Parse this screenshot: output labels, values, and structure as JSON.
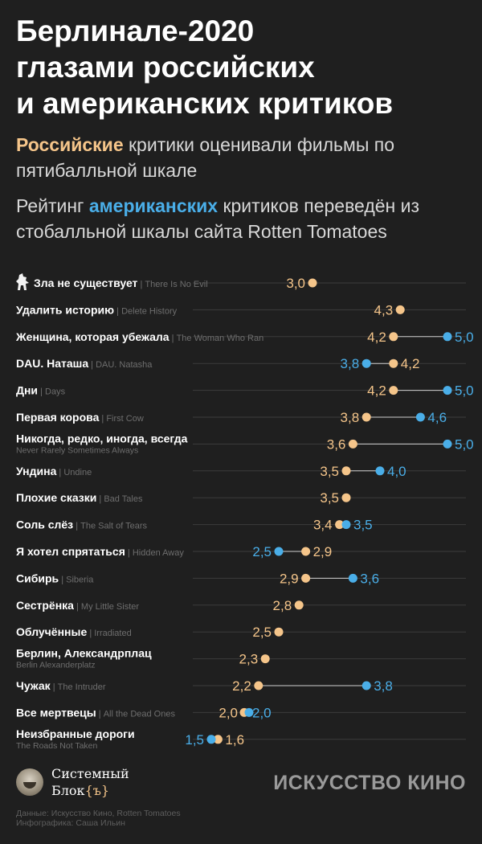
{
  "title_lines": [
    "Берлинале-2020",
    "глазами российских",
    "и американских критиков"
  ],
  "subtitle1": {
    "highlight": "Российские",
    "rest": " критики оценивали фильмы по пятибалльной шкале"
  },
  "subtitle2": {
    "pre": "Рейтинг ",
    "highlight": "американских",
    "rest": " критиков переведён из стобалльной шкалы сайта Rotten Tomatoes"
  },
  "colors": {
    "russian": "#f5c58a",
    "american": "#4aaee8",
    "background": "#1f1f1f",
    "gridline": "#3c3c3c",
    "english_label": "#6e6e6e"
  },
  "icons": {
    "bear": "berlinale-bear-icon"
  },
  "chart_data": {
    "type": "dot-plot",
    "x_range": [
      1,
      5
    ],
    "series": [
      {
        "name": "Российские критики",
        "color": "#f5c58a"
      },
      {
        "name": "Американские критики",
        "color": "#4aaee8"
      }
    ],
    "rows": [
      {
        "ru_title": "Зла не существует",
        "en_title": "There Is No Evil",
        "russian": 3.0,
        "american": null,
        "icon": true
      },
      {
        "ru_title": "Удалить историю",
        "en_title": "Delete History",
        "russian": 4.3,
        "american": null
      },
      {
        "ru_title": "Женщина, которая убежала",
        "en_title": "The Woman Who Ran",
        "russian": 4.2,
        "american": 5.0
      },
      {
        "ru_title": "DAU. Наташа",
        "en_title": "DAU. Natasha",
        "russian": 4.2,
        "american": 3.8
      },
      {
        "ru_title": "Дни",
        "en_title": "Days",
        "russian": 4.2,
        "american": 5.0
      },
      {
        "ru_title": "Первая корова",
        "en_title": "First Cow",
        "russian": 3.8,
        "american": 4.6
      },
      {
        "ru_title": "Никогда, редко, иногда, всегда",
        "en_title": "Never Rarely Sometimes Always",
        "russian": 3.6,
        "american": 5.0,
        "two_line": true
      },
      {
        "ru_title": "Ундина",
        "en_title": "Undine",
        "russian": 3.5,
        "american": 4.0
      },
      {
        "ru_title": "Плохие сказки",
        "en_title": "Bad Tales",
        "russian": 3.5,
        "american": null
      },
      {
        "ru_title": "Соль слёз",
        "en_title": "The Salt of Tears",
        "russian": 3.4,
        "american": 3.5
      },
      {
        "ru_title": "Я хотел спрятаться",
        "en_title": "Hidden Away",
        "russian": 2.9,
        "american": 2.5
      },
      {
        "ru_title": "Сибирь",
        "en_title": "Siberia",
        "russian": 2.9,
        "american": 3.6
      },
      {
        "ru_title": "Сестрёнка",
        "en_title": "My Little Sister",
        "russian": 2.8,
        "american": null
      },
      {
        "ru_title": "Облучённые",
        "en_title": "Irradiated",
        "russian": 2.5,
        "american": null
      },
      {
        "ru_title": "Берлин, Александрплац",
        "en_title": "Berlin Alexanderplatz",
        "russian": 2.3,
        "american": null,
        "two_line": true
      },
      {
        "ru_title": "Чужак",
        "en_title": "The Intruder",
        "russian": 2.2,
        "american": 3.8
      },
      {
        "ru_title": "Все мертвецы",
        "en_title": "All the Dead Ones",
        "russian": 2.0,
        "american": 2.0
      },
      {
        "ru_title": "Неизбранные дороги",
        "en_title": "The Roads Not Taken",
        "russian": 1.6,
        "american": 1.5,
        "two_line": true
      }
    ]
  },
  "footer": {
    "logo_line1": "Системный",
    "logo_line2": "Блок",
    "logo_bracket": "{ъ}",
    "partner": "ИСКУССТВО КИНО",
    "credit_data": "Данные: Искусство Кино, Rotten Tomatoes",
    "credit_graphics": "Инфографика: Саша Ильин"
  }
}
